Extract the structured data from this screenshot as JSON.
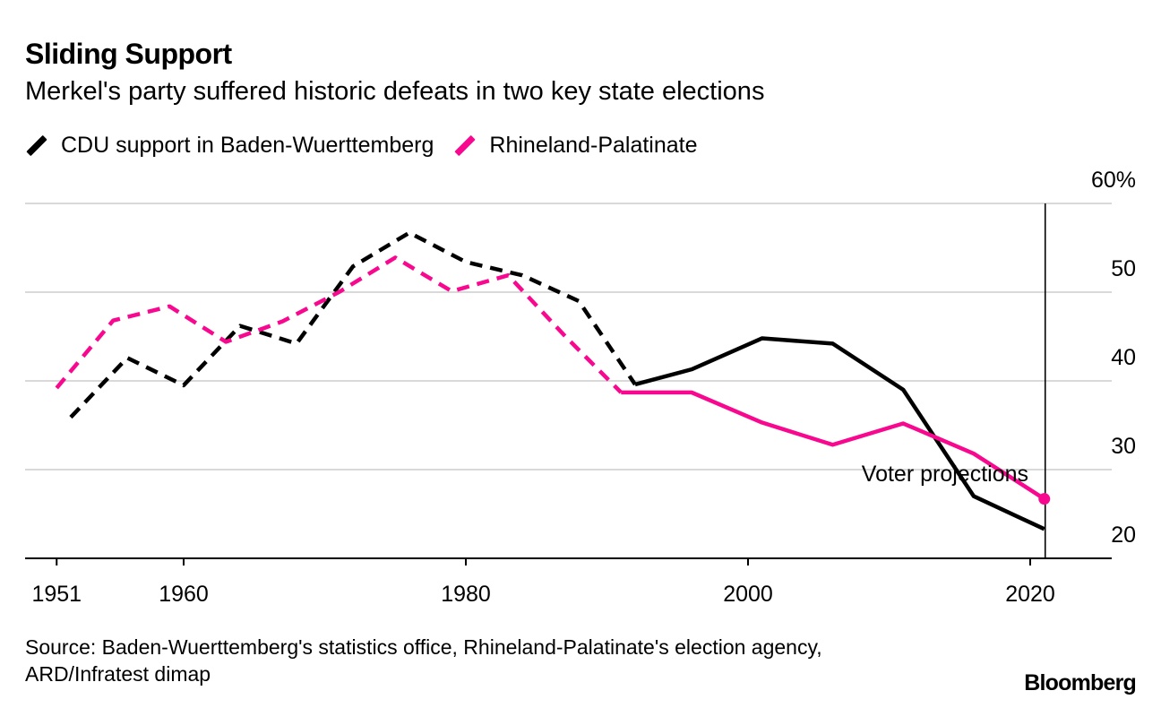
{
  "chart_data": {
    "type": "line",
    "title": "Sliding Support",
    "subtitle": "Merkel's party suffered historic defeats in two key state elections",
    "xlabel": "",
    "ylabel": "",
    "ylim": [
      20,
      60
    ],
    "xlim": [
      1949,
      2025
    ],
    "y_ticks": [
      {
        "value": 60,
        "label": "60%"
      },
      {
        "value": 50,
        "label": "50"
      },
      {
        "value": 40,
        "label": "40"
      },
      {
        "value": 30,
        "label": "30"
      },
      {
        "value": 20,
        "label": "20"
      }
    ],
    "x_ticks": [
      {
        "value": 1951,
        "label": "1951"
      },
      {
        "value": 1960,
        "label": "1960"
      },
      {
        "value": 1980,
        "label": "1980"
      },
      {
        "value": 2000,
        "label": "2000"
      },
      {
        "value": 2020,
        "label": "2020"
      }
    ],
    "grid": true,
    "legend_placement": "top-left",
    "projection_year": 2021,
    "annotation": "Voter projections",
    "series": [
      {
        "name": "CDU support in Baden-Wuerttemberg",
        "color": "#000000",
        "dashed_until": 1992,
        "x": [
          1952,
          1956,
          1960,
          1964,
          1968,
          1972,
          1976,
          1980,
          1984,
          1988,
          1992,
          1996,
          2001,
          2006,
          2011,
          2016,
          2021
        ],
        "values": [
          35.9,
          42.6,
          39.5,
          46.2,
          44.2,
          52.9,
          56.7,
          53.4,
          51.9,
          49.0,
          39.6,
          41.3,
          44.8,
          44.2,
          39.0,
          27.0,
          23.3
        ]
      },
      {
        "name": "Rhineland-Palatinate",
        "color": "#f7088f",
        "dashed_until": 1991,
        "x": [
          1951,
          1955,
          1959,
          1963,
          1967,
          1971,
          1975,
          1979,
          1983,
          1987,
          1991,
          1996,
          2001,
          2006,
          2011,
          2016,
          2021
        ],
        "values": [
          39.2,
          46.8,
          48.4,
          44.4,
          46.7,
          50.0,
          53.9,
          50.1,
          51.9,
          45.1,
          38.7,
          38.7,
          35.3,
          32.8,
          35.2,
          31.8,
          26.7
        ]
      }
    ]
  },
  "source": "Source: Baden-Wuerttemberg's statistics office, Rhineland-Palatinate's election agency, ARD/Infratest dimap",
  "logo": "Bloomberg"
}
